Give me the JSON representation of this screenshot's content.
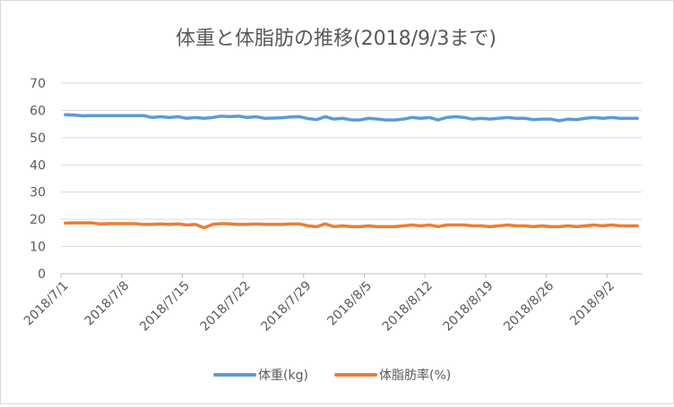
{
  "chart_data": {
    "type": "line",
    "title": "体重と体脂肪の推移(2018/9/3まで)",
    "xlabel": "",
    "ylabel": "",
    "ylim": [
      0,
      70
    ],
    "yticks": [
      0,
      10,
      20,
      30,
      40,
      50,
      60,
      70
    ],
    "grid": true,
    "legend_position": "bottom",
    "xtick_labels": [
      "2018/7/1",
      "2018/7/8",
      "2018/7/15",
      "2018/7/22",
      "2018/7/29",
      "2018/8/5",
      "2018/8/12",
      "2018/8/19",
      "2018/8/26",
      "2018/9/2"
    ],
    "x_start": "2018/7/1",
    "x_end": "2018/9/3",
    "series": [
      {
        "name": "体重(kg)",
        "color": "#5b9bd5",
        "values": [
          58.4,
          58.3,
          58.0,
          58.1,
          58.1,
          58.1,
          58.1,
          58.1,
          58.1,
          58.1,
          57.4,
          57.7,
          57.4,
          57.7,
          57.1,
          57.4,
          57.1,
          57.4,
          57.9,
          57.7,
          57.9,
          57.4,
          57.7,
          57.1,
          57.2,
          57.3,
          57.6,
          57.7,
          57.0,
          56.6,
          57.7,
          56.8,
          57.1,
          56.5,
          56.5,
          57.1,
          56.8,
          56.5,
          56.5,
          56.8,
          57.4,
          57.1,
          57.4,
          56.5,
          57.4,
          57.7,
          57.4,
          56.8,
          57.1,
          56.8,
          57.1,
          57.4,
          57.1,
          57.1,
          56.6,
          56.8,
          56.8,
          56.2,
          56.8,
          56.6,
          57.1,
          57.4,
          57.1,
          57.4,
          57.1,
          57.1,
          57.1
        ]
      },
      {
        "name": "体脂肪率(%)",
        "color": "#ed7d31",
        "values": [
          18.6,
          18.7,
          18.7,
          18.7,
          18.3,
          18.4,
          18.4,
          18.4,
          18.4,
          18.1,
          18.1,
          18.3,
          18.1,
          18.3,
          17.9,
          18.1,
          16.9,
          18.1,
          18.4,
          18.3,
          18.1,
          18.1,
          18.3,
          18.1,
          18.1,
          18.1,
          18.3,
          18.3,
          17.6,
          17.3,
          18.3,
          17.3,
          17.6,
          17.3,
          17.3,
          17.6,
          17.3,
          17.3,
          17.3,
          17.6,
          17.9,
          17.6,
          17.9,
          17.3,
          17.9,
          17.9,
          17.9,
          17.6,
          17.6,
          17.3,
          17.6,
          17.9,
          17.6,
          17.6,
          17.3,
          17.6,
          17.3,
          17.3,
          17.6,
          17.3,
          17.6,
          17.9,
          17.6,
          17.9,
          17.6,
          17.6,
          17.6
        ]
      }
    ]
  }
}
